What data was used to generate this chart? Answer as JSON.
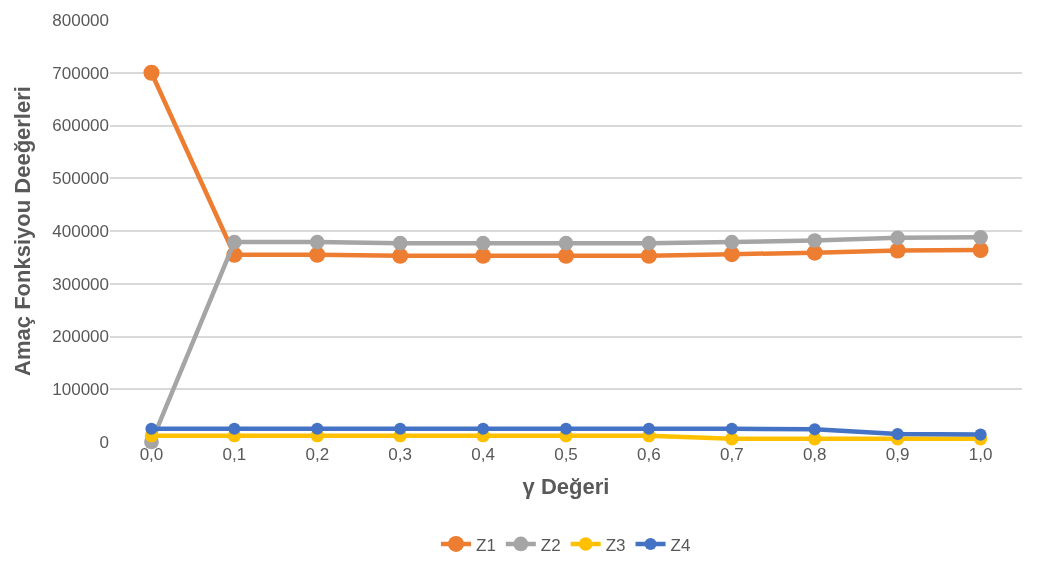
{
  "chart_data": {
    "type": "line",
    "xlabel": "γ Değeri",
    "ylabel": "Amaç Fonksiyou Deeğerleri",
    "categories": [
      "0,0",
      "0,1",
      "0,2",
      "0,3",
      "0,4",
      "0,5",
      "0,6",
      "0,7",
      "0,8",
      "0,9",
      "1,0"
    ],
    "series": [
      {
        "name": "Z1",
        "color": "#ed7d31",
        "values": [
          700000,
          355000,
          355000,
          353000,
          353000,
          353000,
          353000,
          356000,
          359000,
          363000,
          364000
        ]
      },
      {
        "name": "Z2",
        "color": "#a5a5a5",
        "values": [
          0,
          379000,
          379000,
          377000,
          377000,
          377000,
          377000,
          379000,
          382000,
          387000,
          388000
        ]
      },
      {
        "name": "Z3",
        "color": "#ffc000",
        "values": [
          12000,
          12000,
          12000,
          12000,
          12000,
          12000,
          12000,
          6000,
          6000,
          6000,
          6000
        ]
      },
      {
        "name": "Z4",
        "color": "#4472c4",
        "values": [
          25000,
          25000,
          25000,
          25000,
          25000,
          25000,
          25000,
          25000,
          24000,
          15000,
          14000
        ]
      }
    ],
    "ylim": [
      0,
      800000
    ],
    "yticks": [
      0,
      100000,
      200000,
      300000,
      400000,
      500000,
      600000,
      700000,
      800000
    ],
    "grid": "y",
    "legend": "bottom",
    "marker": "circle",
    "line_style": "solid"
  }
}
